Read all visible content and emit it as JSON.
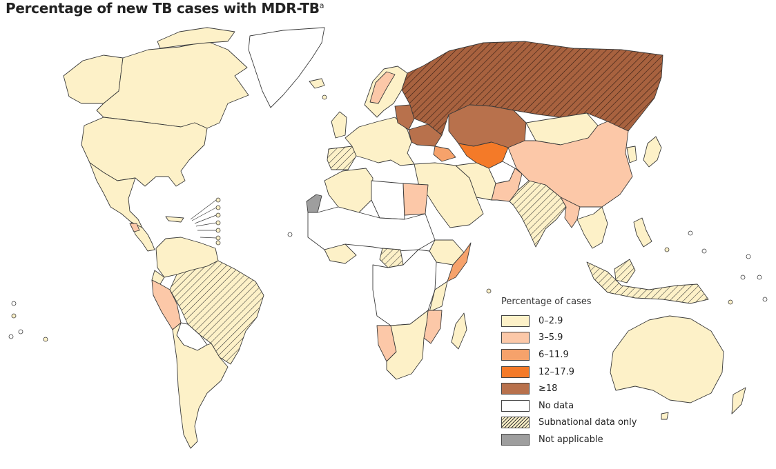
{
  "title": "Percentage of new TB cases with MDR-TB",
  "title_superscript": "a",
  "legend": {
    "title": "Percentage of cases",
    "items": [
      {
        "label": "0–2.9",
        "color": "#fdf1c8"
      },
      {
        "label": "3–5.9",
        "color": "#fcc8a8"
      },
      {
        "label": "6–11.9",
        "color": "#f6a26b"
      },
      {
        "label": "12–17.9",
        "color": "#f47a28"
      },
      {
        "label": "≥18",
        "color": "#b8714c"
      },
      {
        "label": "No data",
        "color": "#ffffff"
      },
      {
        "label": "Subnational data only",
        "pattern": "hatch"
      },
      {
        "label": "Not applicable",
        "color": "#9e9e9e"
      }
    ]
  },
  "colors": {
    "low": "#fdf1c8",
    "mid_low": "#fcc8a8",
    "mid": "#f6a26b",
    "high": "#f47a28",
    "very_high": "#b8714c",
    "no_data": "#ffffff",
    "not_applicable": "#9e9e9e",
    "border": "#3a3a3a"
  },
  "regions": [
    {
      "id": "canada",
      "category": "low"
    },
    {
      "id": "alaska",
      "category": "low"
    },
    {
      "id": "usa",
      "category": "low"
    },
    {
      "id": "mexico",
      "category": "low"
    },
    {
      "id": "central-america",
      "category": "low"
    },
    {
      "id": "greenland",
      "category": "no_data"
    },
    {
      "id": "colombia-venezuela",
      "category": "low"
    },
    {
      "id": "peru",
      "category": "mid_low"
    },
    {
      "id": "brazil",
      "category": "subnational"
    },
    {
      "id": "bolivia",
      "category": "no_data"
    },
    {
      "id": "southern-cone",
      "category": "low"
    },
    {
      "id": "europe",
      "category": "low"
    },
    {
      "id": "scandinavia",
      "category": "low"
    },
    {
      "id": "iberia",
      "category": "subnational"
    },
    {
      "id": "baltics-belarus",
      "category": "very_high"
    },
    {
      "id": "ukraine",
      "category": "very_high"
    },
    {
      "id": "russia",
      "category": "very_high_subnational"
    },
    {
      "id": "kazakhstan",
      "category": "very_high"
    },
    {
      "id": "central-asia",
      "category": "high"
    },
    {
      "id": "caucasus",
      "category": "mid"
    },
    {
      "id": "mongolia",
      "category": "low"
    },
    {
      "id": "china",
      "category": "mid_low"
    },
    {
      "id": "north-africa-west",
      "category": "low"
    },
    {
      "id": "libya",
      "category": "no_data"
    },
    {
      "id": "egypt",
      "category": "mid_low"
    },
    {
      "id": "western-sahara",
      "category": "not_applicable"
    },
    {
      "id": "sahel",
      "category": "no_data"
    },
    {
      "id": "west-africa",
      "category": "low"
    },
    {
      "id": "nigeria",
      "category": "subnational"
    },
    {
      "id": "sudan",
      "category": "no_data"
    },
    {
      "id": "ethiopia",
      "category": "low"
    },
    {
      "id": "somalia",
      "category": "mid"
    },
    {
      "id": "central-africa",
      "category": "no_data"
    },
    {
      "id": "east-africa",
      "category": "low"
    },
    {
      "id": "namibia",
      "category": "mid_low"
    },
    {
      "id": "mozambique",
      "category": "mid_low"
    },
    {
      "id": "southern-africa",
      "category": "low"
    },
    {
      "id": "madagascar",
      "category": "low"
    },
    {
      "id": "middle-east",
      "category": "low"
    },
    {
      "id": "iran",
      "category": "low"
    },
    {
      "id": "afghanistan",
      "category": "no_data"
    },
    {
      "id": "pakistan",
      "category": "mid_low"
    },
    {
      "id": "india",
      "category": "subnational"
    },
    {
      "id": "southeast-asia",
      "category": "low"
    },
    {
      "id": "myanmar",
      "category": "mid_low"
    },
    {
      "id": "indonesia",
      "category": "subnational"
    },
    {
      "id": "japan",
      "category": "low"
    },
    {
      "id": "australia",
      "category": "low"
    },
    {
      "id": "new-zealand",
      "category": "low"
    }
  ]
}
